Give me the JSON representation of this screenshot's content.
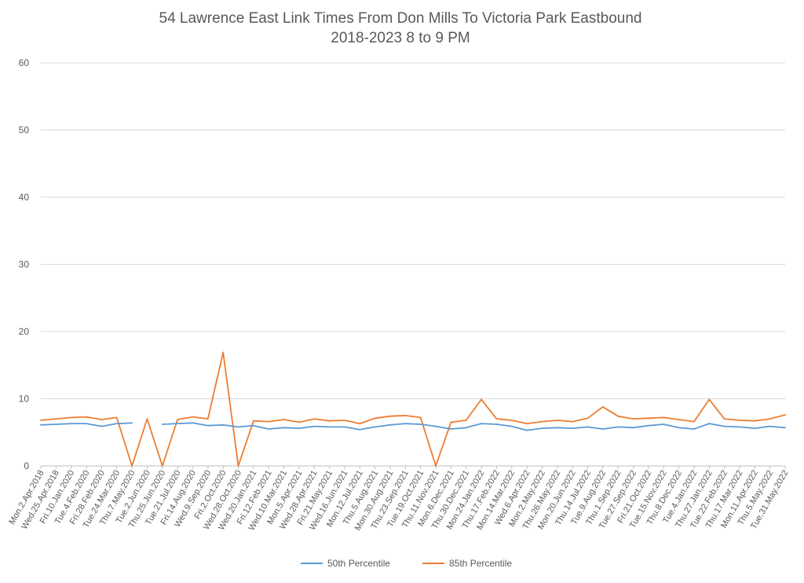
{
  "chart_data": {
    "type": "line",
    "title": "54 Lawrence East Link Times From Don Mills To Victoria Park Eastbound",
    "subtitle": "2018-2023 8 to 9 PM",
    "xlabel": "",
    "ylabel": "",
    "ylim": [
      0,
      60
    ],
    "yticks": [
      0,
      10,
      20,
      30,
      40,
      50,
      60
    ],
    "grid": true,
    "legend_position": "bottom",
    "x_tick_labels": [
      "Mon.2.Apr.2018",
      "Wed.25.Apr.2018",
      "Fri.10.Jan.2020",
      "Tue.4.Feb.2020",
      "Fri.28.Feb.2020",
      "Tue.24.Mar.2020",
      "Thu.7.May.2020",
      "Tue.2.Jun.2020",
      "Thu.25.Jun.2020",
      "Tue.21.Jul.2020",
      "Fri.14.Aug.2020",
      "Wed.9.Sep.2020",
      "Fri.2.Oct.2020",
      "Wed.28.Oct.2020",
      "Wed.20.Jan.2021",
      "Fri.12.Feb.2021",
      "Wed.10.Mar.2021",
      "Mon.5.Apr.2021",
      "Wed.28.Apr.2021",
      "Fri.21.May.2021",
      "Wed.16.Jun.2021",
      "Mon.12.Jul.2021",
      "Thu.5.Aug.2021",
      "Mon.30.Aug.2021",
      "Thu.23.Sep.2021",
      "Tue.19.Oct.2021",
      "Thu.11.Nov.2021",
      "Mon.6.Dec.2021",
      "Thu.30.Dec.2021",
      "Mon.24.Jan.2022",
      "Thu.17.Feb.2022",
      "Mon.14.Mar.2022",
      "Wed.6.Apr.2022",
      "Mon.2.May.2022",
      "Thu.26.May.2022",
      "Mon.20.Jun.2022",
      "Thu.14.Jul.2022",
      "Tue.9.Aug.2022",
      "Thu.1.Sep.2022",
      "Tue.27.Sep.2022",
      "Fri.21.Oct.2022",
      "Tue.15.Nov.2022",
      "Thu.8.Dec.2022",
      "Tue.4.Jan.2022",
      "Thu.27.Jan.2022",
      "Tue.22.Feb.2022",
      "Thu.17.Mar.2022",
      "Mon.11.Apr.2022",
      "Thu.5.May.2022",
      "Tue.31.May.2022"
    ],
    "series": [
      {
        "name": "50th Percentile",
        "color": "#5b9bd5",
        "values": [
          6.1,
          6.2,
          6.3,
          6.3,
          5.9,
          6.3,
          6.4,
          null,
          6.2,
          6.3,
          6.4,
          6.0,
          6.1,
          5.8,
          6.0,
          5.5,
          5.7,
          5.6,
          5.9,
          5.8,
          5.8,
          5.4,
          5.8,
          6.1,
          6.3,
          6.2,
          5.9,
          5.5,
          5.7,
          6.3,
          6.2,
          5.9,
          5.3,
          5.6,
          5.7,
          5.6,
          5.8,
          5.5,
          5.8,
          5.7,
          6.0,
          6.2,
          5.7,
          5.5,
          6.3,
          5.9,
          5.8,
          5.6,
          5.9,
          5.7
        ]
      },
      {
        "name": "85th Percentile",
        "color": "#ed7d31",
        "values": [
          6.8,
          7.0,
          7.2,
          7.3,
          6.9,
          7.2,
          0.0,
          7.0,
          0.0,
          6.9,
          7.3,
          7.0,
          16.9,
          0.0,
          6.7,
          6.6,
          6.9,
          6.5,
          7.0,
          6.7,
          6.8,
          6.3,
          7.1,
          7.4,
          7.5,
          7.2,
          0.0,
          6.5,
          6.8,
          9.9,
          7.0,
          6.8,
          6.3,
          6.6,
          6.8,
          6.6,
          7.1,
          8.8,
          7.4,
          7.0,
          7.1,
          7.2,
          6.9,
          6.6,
          9.9,
          7.0,
          6.8,
          6.7,
          7.0,
          7.6
        ]
      }
    ]
  }
}
